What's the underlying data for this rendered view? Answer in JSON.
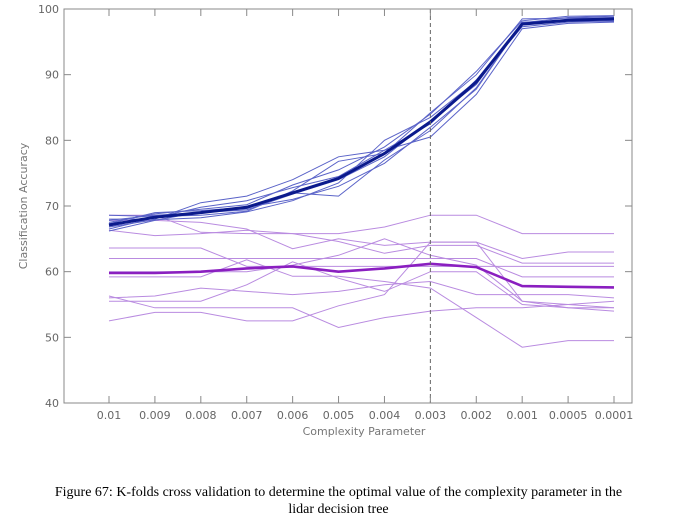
{
  "chart_data": {
    "type": "line",
    "xlabel": "Complexity Parameter",
    "ylabel": "Classification Accuracy",
    "categories": [
      "0.01",
      "0.009",
      "0.008",
      "0.007",
      "0.006",
      "0.005",
      "0.004",
      "0.003",
      "0.002",
      "0.001",
      "0.0005",
      "0.0001"
    ],
    "ylim": [
      40,
      100
    ],
    "yticks": [
      40,
      50,
      60,
      70,
      80,
      90,
      100
    ],
    "reference_line": {
      "category": "0.003",
      "style": "dashed"
    },
    "colors": {
      "training": "#5a63c8",
      "training_mean": "#0b1a8c",
      "test": "#b98be0",
      "test_mean": "#8a1fc0",
      "axis": "#888888",
      "refline": "#666666"
    },
    "training_folds": [
      [
        66.5,
        68.2,
        69.8,
        70.8,
        72.8,
        74.5,
        78.5,
        82.5,
        89.2,
        97.6,
        98.4,
        98.6
      ],
      [
        67.3,
        69.0,
        69.3,
        69.8,
        71.0,
        73.0,
        76.5,
        82.0,
        87.8,
        97.9,
        98.7,
        98.9
      ],
      [
        67.8,
        68.6,
        69.0,
        69.4,
        71.8,
        74.0,
        77.5,
        83.0,
        88.5,
        98.0,
        98.2,
        98.1
      ],
      [
        68.6,
        68.4,
        68.6,
        69.2,
        72.3,
        76.8,
        78.0,
        84.2,
        90.0,
        98.5,
        98.6,
        98.7
      ],
      [
        66.8,
        67.9,
        68.2,
        69.1,
        70.8,
        73.5,
        80.0,
        83.5,
        89.0,
        97.3,
        98.0,
        98.2
      ],
      [
        68.0,
        68.0,
        70.5,
        71.5,
        74.0,
        77.5,
        78.5,
        80.5,
        87.0,
        97.0,
        97.8,
        98.0
      ],
      [
        66.2,
        67.8,
        69.1,
        69.6,
        72.0,
        71.5,
        77.0,
        81.5,
        88.0,
        97.8,
        98.3,
        98.4
      ],
      [
        67.5,
        68.8,
        69.5,
        70.2,
        73.2,
        75.5,
        79.0,
        84.0,
        90.5,
        98.2,
        98.9,
        99.0
      ]
    ],
    "training_mean": [
      67.1,
      68.3,
      69.0,
      69.8,
      72.0,
      74.2,
      78.0,
      82.8,
      88.9,
      97.7,
      98.3,
      98.5
    ],
    "test_folds": [
      [
        68.6,
        68.6,
        66.0,
        65.8,
        65.8,
        65.8,
        66.8,
        68.6,
        68.6,
        65.8,
        65.8,
        65.8
      ],
      [
        67.8,
        67.8,
        67.5,
        66.5,
        63.5,
        65.0,
        64.0,
        64.5,
        64.5,
        62.0,
        63.0,
        63.0
      ],
      [
        66.3,
        65.5,
        65.8,
        66.3,
        65.8,
        64.6,
        62.8,
        64.0,
        64.0,
        61.3,
        61.3,
        61.3
      ],
      [
        63.6,
        63.6,
        63.6,
        60.8,
        60.8,
        60.8,
        60.8,
        60.8,
        60.8,
        60.8,
        60.8,
        60.8
      ],
      [
        62.0,
        62.0,
        62.0,
        62.0,
        62.0,
        62.0,
        62.0,
        62.0,
        62.0,
        59.2,
        59.2,
        59.2
      ],
      [
        60.0,
        60.0,
        60.0,
        60.0,
        61.0,
        62.5,
        65.0,
        62.5,
        61.0,
        55.5,
        55.0,
        54.5
      ],
      [
        59.2,
        59.2,
        59.2,
        61.8,
        59.3,
        59.3,
        58.5,
        57.5,
        53.0,
        48.5,
        49.5,
        49.5
      ],
      [
        56.0,
        56.3,
        57.5,
        57.0,
        56.5,
        57.0,
        58.0,
        58.5,
        56.5,
        56.5,
        56.5,
        56.0
      ],
      [
        55.5,
        55.5,
        55.5,
        58.0,
        61.5,
        59.0,
        57.0,
        60.0,
        60.0,
        55.0,
        54.5,
        54.5
      ],
      [
        56.3,
        54.5,
        54.5,
        54.5,
        54.5,
        51.5,
        53.0,
        54.0,
        54.5,
        54.5,
        55.0,
        55.5
      ],
      [
        52.5,
        53.8,
        53.8,
        52.5,
        52.5,
        54.8,
        56.5,
        64.5,
        64.5,
        55.5,
        54.5,
        54.0
      ]
    ],
    "test_mean": [
      59.8,
      59.8,
      60.0,
      60.5,
      60.8,
      60.0,
      60.5,
      61.2,
      60.7,
      57.8,
      57.7,
      57.6
    ]
  },
  "caption": {
    "line1": "Figure 67: K-folds cross validation to determine the optimal value of the complexity parameter in the",
    "line2": "lidar decision tree"
  }
}
